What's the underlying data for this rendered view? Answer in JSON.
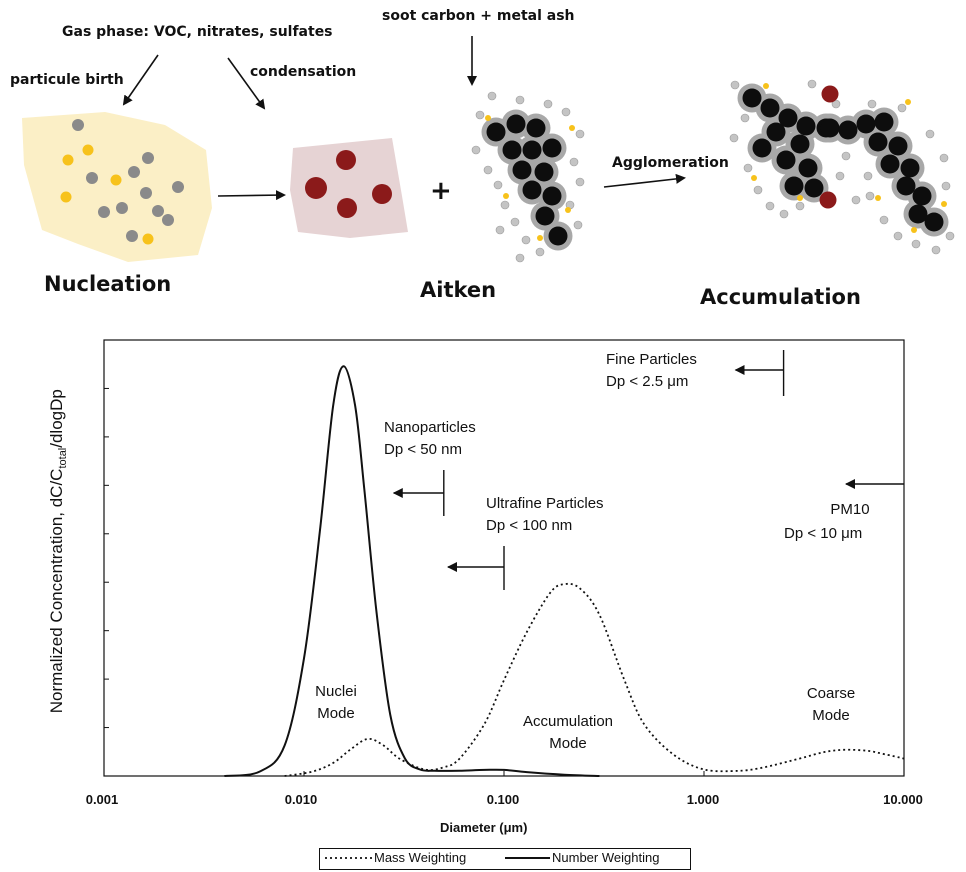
{
  "illustration": {
    "top_labels": {
      "gas_phase": "Gas phase: VOC, nitrates, sulfates",
      "soot": "soot carbon + metal ash",
      "particule_birth": "particule birth",
      "condensation": "condensation",
      "agglomeration": "Agglomeration",
      "plus": "+"
    },
    "stages": {
      "nucleation": "Nucleation",
      "aitken": "Aitken",
      "accumulation": "Accumulation"
    },
    "colors": {
      "nucleation_cloud": "#fbefc6",
      "condensation_cloud": "#e6d3d4",
      "yellow_dot": "#f7c21b",
      "gray_dot": "#8a8a8a",
      "maroon_dot": "#8b1a1a",
      "soot_core": "#0d0d0d",
      "soot_halo": "#a8a8a8"
    }
  },
  "chart": {
    "ylabel_main": "Normalized Concentration, dC/C",
    "ylabel_sub": "total",
    "ylabel_tail": "/dlogDp",
    "xlabel": "Diameter (μm)",
    "annotations": {
      "fine_line1": "Fine Particles",
      "fine_line2": "Dp < 2.5 μm",
      "nano_line1": "Nanoparticles",
      "nano_line2": "Dp < 50 nm",
      "ultra_line1": "Ultrafine Particles",
      "ultra_line2": "Dp < 100 nm",
      "pm10_line1": "PM10",
      "pm10_line2": "Dp < 10 μm",
      "nuclei_line1": "Nuclei",
      "nuclei_line2": "Mode",
      "accum_line1": "Accumulation",
      "accum_line2": "Mode",
      "coarse_line1": "Coarse",
      "coarse_line2": "Mode"
    },
    "legend": {
      "mass": "Mass Weighting",
      "number": "Number Weighting"
    }
  },
  "chart_data": {
    "type": "line",
    "xscale": "log",
    "xlim": [
      0.001,
      10.0
    ],
    "ylim": [
      0,
      1.0
    ],
    "xticks": [
      0.001,
      0.01,
      0.1,
      1.0,
      10.0
    ],
    "xtick_labels": [
      "0.001",
      "0.010",
      "0.100",
      "1.000",
      "10.000"
    ],
    "xlabel": "Diameter (μm)",
    "ylabel": "Normalized Concentration, dC/Ctotal/dlogDp",
    "grid": false,
    "legend_position": "bottom",
    "series": [
      {
        "name": "Number Weighting",
        "style": "solid",
        "x": [
          0.004,
          0.006,
          0.008,
          0.01,
          0.012,
          0.014,
          0.0158,
          0.018,
          0.02,
          0.023,
          0.027,
          0.032,
          0.038,
          0.045,
          0.06,
          0.08,
          0.1,
          0.13,
          0.2,
          0.3
        ],
        "y": [
          0.0,
          0.01,
          0.07,
          0.27,
          0.56,
          0.85,
          0.94,
          0.85,
          0.66,
          0.38,
          0.14,
          0.04,
          0.015,
          0.012,
          0.012,
          0.014,
          0.014,
          0.009,
          0.003,
          0.0
        ]
      },
      {
        "name": "Mass Weighting",
        "style": "dotted",
        "x": [
          0.008,
          0.011,
          0.014,
          0.017,
          0.0208,
          0.025,
          0.03,
          0.04,
          0.05,
          0.06,
          0.08,
          0.1,
          0.13,
          0.17,
          0.2,
          0.24,
          0.3,
          0.4,
          0.5,
          0.7,
          1.0,
          1.5,
          2.0,
          3.0,
          4.0,
          5.0,
          6.5,
          8.0,
          10.0
        ],
        "y": [
          0.0,
          0.01,
          0.03,
          0.06,
          0.085,
          0.07,
          0.04,
          0.015,
          0.02,
          0.04,
          0.12,
          0.22,
          0.33,
          0.42,
          0.44,
          0.43,
          0.37,
          0.22,
          0.12,
          0.05,
          0.015,
          0.012,
          0.02,
          0.04,
          0.055,
          0.06,
          0.058,
          0.05,
          0.04
        ]
      }
    ],
    "annotations": [
      {
        "text": "Fine Particles Dp < 2.5 μm",
        "x_cut": 2.5
      },
      {
        "text": "Nanoparticles Dp < 50 nm",
        "x_cut": 0.05
      },
      {
        "text": "Ultrafine Particles Dp < 100 nm",
        "x_cut": 0.1
      },
      {
        "text": "PM10 Dp < 10 μm",
        "x_cut": 10.0
      },
      {
        "text": "Nuclei Mode",
        "x": 0.02
      },
      {
        "text": "Accumulation Mode",
        "x": 0.25
      },
      {
        "text": "Coarse Mode",
        "x": 5.0
      }
    ]
  }
}
